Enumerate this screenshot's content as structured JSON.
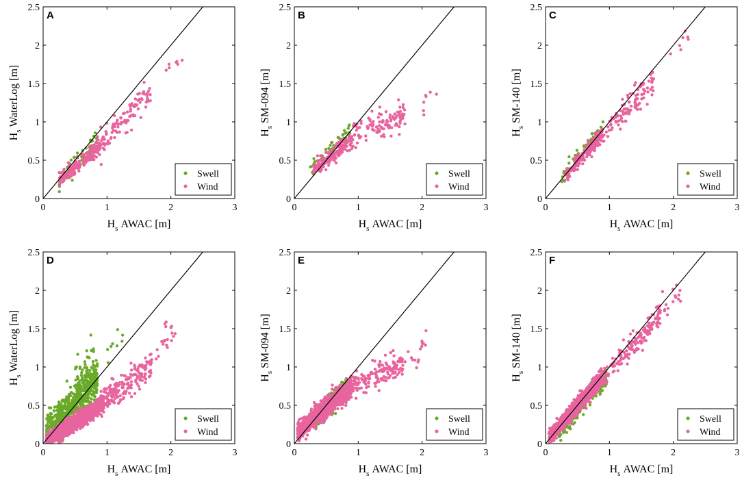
{
  "figure": {
    "colors": {
      "swell": "#6aaa2a",
      "wind": "#e8649e",
      "line": "#000000"
    }
  },
  "chart_data": [
    {
      "type": "scatter",
      "panel": "A",
      "ylabel_sub": "s",
      "ylabel_rest": "WaterLog [m]",
      "xlabel_main": "H",
      "xlabel_sub": "s",
      "xlabel_rest": "AWAC [m]",
      "ylabel_main": "H",
      "xlim": [
        0,
        3
      ],
      "ylim": [
        0,
        2.5
      ],
      "xticks": [
        "0",
        "1",
        "2",
        "3"
      ],
      "yticks": [
        "0",
        "0.5",
        "1",
        "1.5",
        "2",
        "2.5"
      ],
      "reference_line": "1:1",
      "legend": [
        "Swell",
        "Wind"
      ],
      "series": [
        {
          "name": "Swell",
          "clusters": [
            {
              "x": [
                0.25,
                0.85
              ],
              "slope": 1.0,
              "intercept": -0.05,
              "spread": 0.07,
              "n": 60
            }
          ]
        },
        {
          "name": "Wind",
          "clusters": [
            {
              "x": [
                0.25,
                0.9
              ],
              "slope": 0.72,
              "intercept": 0.05,
              "spread": 0.05,
              "n": 170
            },
            {
              "x": [
                0.9,
                1.7
              ],
              "slope": 0.85,
              "intercept": -0.05,
              "spread": 0.08,
              "n": 100
            },
            {
              "x": [
                1.9,
                2.25
              ],
              "slope": 0.8,
              "intercept": 0.15,
              "spread": 0.08,
              "n": 7
            }
          ]
        }
      ]
    },
    {
      "type": "scatter",
      "panel": "B",
      "ylabel_sub": "s",
      "ylabel_rest": "SM-094 [m]",
      "xlabel_main": "H",
      "xlabel_sub": "s",
      "xlabel_rest": "AWAC [m]",
      "ylabel_main": "H",
      "xlim": [
        0,
        3
      ],
      "ylim": [
        0,
        2.5
      ],
      "xticks": [
        "0",
        "1",
        "2",
        "3"
      ],
      "yticks": [
        "0",
        "0.5",
        "1",
        "1.5",
        "2",
        "2.5"
      ],
      "reference_line": "1:1",
      "legend": [
        "Swell",
        "Wind"
      ],
      "series": [
        {
          "name": "Swell",
          "clusters": [
            {
              "x": [
                0.25,
                0.9
              ],
              "slope": 0.85,
              "intercept": 0.15,
              "spread": 0.05,
              "n": 50
            }
          ]
        },
        {
          "name": "Wind",
          "clusters": [
            {
              "x": [
                0.3,
                0.9
              ],
              "slope": 0.7,
              "intercept": 0.15,
              "spread": 0.05,
              "n": 170
            },
            {
              "x": [
                0.9,
                1.75
              ],
              "slope": 0.35,
              "intercept": 0.5,
              "spread": 0.09,
              "n": 110
            },
            {
              "x": [
                2.0,
                2.25
              ],
              "slope": 0.4,
              "intercept": 0.4,
              "spread": 0.09,
              "n": 7
            }
          ]
        }
      ]
    },
    {
      "type": "scatter",
      "panel": "C",
      "ylabel_sub": "s",
      "ylabel_rest": "SM-140 [m]",
      "xlabel_main": "H",
      "xlabel_sub": "s",
      "xlabel_rest": "AWAC [m]",
      "ylabel_main": "H",
      "xlim": [
        0,
        3
      ],
      "ylim": [
        0,
        2.5
      ],
      "xticks": [
        "0",
        "1",
        "2",
        "3"
      ],
      "yticks": [
        "0",
        "0.5",
        "1",
        "1.5",
        "2",
        "2.5"
      ],
      "reference_line": "1:1",
      "legend": [
        "Swell",
        "Wind"
      ],
      "series": [
        {
          "name": "Swell",
          "clusters": [
            {
              "x": [
                0.25,
                0.9
              ],
              "slope": 1.05,
              "intercept": 0.0,
              "spread": 0.05,
              "n": 60
            }
          ]
        },
        {
          "name": "Wind",
          "clusters": [
            {
              "x": [
                0.3,
                0.9
              ],
              "slope": 0.95,
              "intercept": 0.0,
              "spread": 0.05,
              "n": 170
            },
            {
              "x": [
                0.9,
                1.7
              ],
              "slope": 0.92,
              "intercept": 0.0,
              "spread": 0.09,
              "n": 100
            },
            {
              "x": [
                1.95,
                2.25
              ],
              "slope": 0.9,
              "intercept": 0.1,
              "spread": 0.1,
              "n": 7
            }
          ]
        }
      ]
    },
    {
      "type": "scatter",
      "panel": "D",
      "ylabel_sub": "s",
      "ylabel_rest": "WaterLog [m]",
      "xlabel_main": "H",
      "xlabel_sub": "s",
      "xlabel_rest": "AWAC [m]",
      "ylabel_main": "H",
      "xlim": [
        0,
        3
      ],
      "ylim": [
        0,
        2.5
      ],
      "xticks": [
        "0",
        "1",
        "2",
        "3"
      ],
      "yticks": [
        "0",
        "0.5",
        "1",
        "1.5",
        "2",
        "2.5"
      ],
      "reference_line": "1:1",
      "legend": [
        "Swell",
        "Wind"
      ],
      "series": [
        {
          "name": "Swell",
          "clusters": [
            {
              "x": [
                0.05,
                0.85
              ],
              "slope": 0.9,
              "intercept": 0.08,
              "spread": 0.12,
              "n": 700
            },
            {
              "x": [
                0.5,
                0.8
              ],
              "slope": 0.9,
              "intercept": 0.35,
              "spread": 0.18,
              "n": 40
            },
            {
              "x": [
                1.0,
                1.25
              ],
              "slope": 0.9,
              "intercept": 0.2,
              "spread": 0.15,
              "n": 8
            }
          ]
        },
        {
          "name": "Wind",
          "clusters": [
            {
              "x": [
                0.05,
                0.95
              ],
              "slope": 0.55,
              "intercept": 0.0,
              "spread": 0.05,
              "n": 1100
            },
            {
              "x": [
                0.9,
                1.7
              ],
              "slope": 0.6,
              "intercept": 0.0,
              "spread": 0.09,
              "n": 200
            },
            {
              "x": [
                1.7,
                2.1
              ],
              "slope": 0.7,
              "intercept": 0.0,
              "spread": 0.1,
              "n": 20
            }
          ]
        }
      ]
    },
    {
      "type": "scatter",
      "panel": "E",
      "ylabel_sub": "s",
      "ylabel_rest": "SM-094 [m]",
      "xlabel_main": "H",
      "xlabel_sub": "s",
      "xlabel_rest": "AWAC [m]",
      "ylabel_main": "H",
      "xlim": [
        0,
        3
      ],
      "ylim": [
        0,
        2.5
      ],
      "xticks": [
        "0",
        "1",
        "2",
        "3"
      ],
      "yticks": [
        "0",
        "0.5",
        "1",
        "1.5",
        "2",
        "2.5"
      ],
      "reference_line": "1:1",
      "legend": [
        "Swell",
        "Wind"
      ],
      "series": [
        {
          "name": "Swell",
          "clusters": [
            {
              "x": [
                0.3,
                0.85
              ],
              "slope": 0.8,
              "intercept": 0.05,
              "spread": 0.07,
              "n": 200
            }
          ]
        },
        {
          "name": "Wind",
          "clusters": [
            {
              "x": [
                0.05,
                0.9
              ],
              "slope": 0.7,
              "intercept": 0.12,
              "spread": 0.06,
              "n": 1100
            },
            {
              "x": [
                0.9,
                1.7
              ],
              "slope": 0.35,
              "intercept": 0.45,
              "spread": 0.08,
              "n": 150
            },
            {
              "x": [
                1.7,
                2.1
              ],
              "slope": 0.45,
              "intercept": 0.3,
              "spread": 0.09,
              "n": 15
            }
          ]
        }
      ]
    },
    {
      "type": "scatter",
      "panel": "F",
      "ylabel_sub": "s",
      "ylabel_rest": "SM-140 [m]",
      "xlabel_main": "H",
      "xlabel_sub": "s",
      "xlabel_rest": "AWAC [m]",
      "ylabel_main": "H",
      "xlim": [
        0,
        3
      ],
      "ylim": [
        0,
        2.5
      ],
      "xticks": [
        "0",
        "1",
        "2",
        "3"
      ],
      "yticks": [
        "0",
        "0.5",
        "1",
        "1.5",
        "2",
        "2.5"
      ],
      "reference_line": "1:1",
      "legend": [
        "Swell",
        "Wind"
      ],
      "series": [
        {
          "name": "Swell",
          "clusters": [
            {
              "x": [
                0.2,
                0.95
              ],
              "slope": 0.95,
              "intercept": -0.03,
              "spread": 0.06,
              "n": 250
            }
          ]
        },
        {
          "name": "Wind",
          "clusters": [
            {
              "x": [
                0.05,
                0.9
              ],
              "slope": 0.95,
              "intercept": 0.02,
              "spread": 0.05,
              "n": 1100
            },
            {
              "x": [
                0.9,
                1.8
              ],
              "slope": 0.93,
              "intercept": 0.02,
              "spread": 0.08,
              "n": 150
            },
            {
              "x": [
                1.8,
                2.15
              ],
              "slope": 0.92,
              "intercept": 0.05,
              "spread": 0.1,
              "n": 15
            }
          ]
        }
      ]
    }
  ]
}
